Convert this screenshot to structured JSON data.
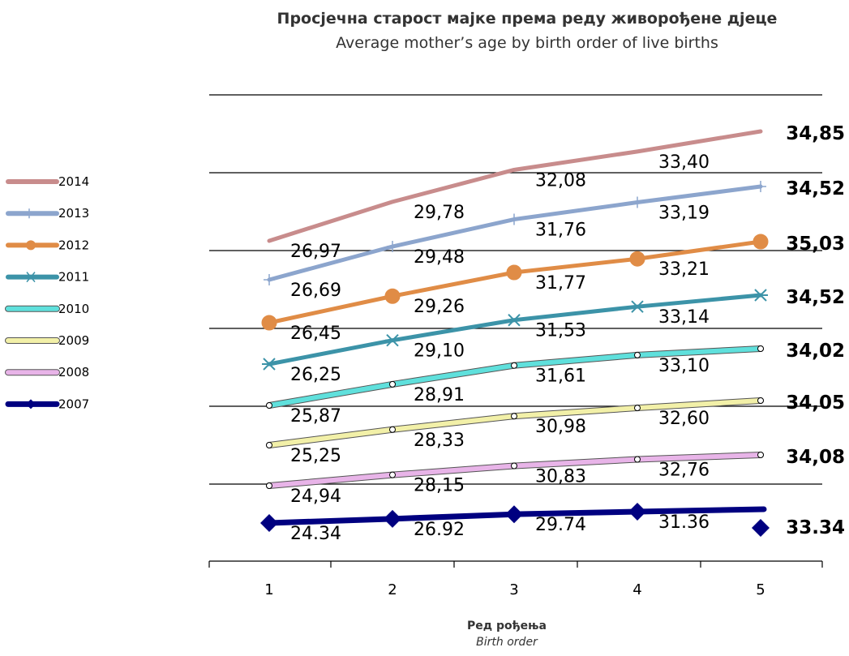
{
  "chart_data": {
    "type": "line",
    "title": "Просјечна старост мајке према реду живорођене дјеце",
    "subtitle": "Average mother’s age by birth order of live births",
    "xlabel": "Ред рођења",
    "xlabel_en": "Birth order",
    "categories": [
      "1",
      "2",
      "3",
      "4",
      "5"
    ],
    "legend_position": "left",
    "series": [
      {
        "name": "2014",
        "values": [
          26.97,
          29.78,
          32.08,
          33.4,
          34.85
        ],
        "labels": [
          "26,97",
          "29,78",
          "32,08",
          "33,40",
          "34,85"
        ],
        "color": "#c88c8c",
        "marker": "none"
      },
      {
        "name": "2013",
        "values": [
          26.69,
          29.48,
          31.76,
          33.19,
          34.52
        ],
        "labels": [
          "26,69",
          "29,48",
          "31,76",
          "33,19",
          "34,52"
        ],
        "color": "#8ca5cd",
        "marker": "plus"
      },
      {
        "name": "2012",
        "values": [
          26.45,
          29.26,
          31.77,
          33.21,
          35.03
        ],
        "labels": [
          "26,45",
          "29,26",
          "31,77",
          "33,21",
          "35,03"
        ],
        "color": "#e08c46",
        "marker": "circle"
      },
      {
        "name": "2011",
        "values": [
          26.25,
          29.1,
          31.53,
          33.14,
          34.52
        ],
        "labels": [
          "26,25",
          "29,10",
          "31,53",
          "33,14",
          "34,52"
        ],
        "color": "#3c93a8",
        "marker": "asterisk"
      },
      {
        "name": "2010",
        "values": [
          25.87,
          28.91,
          31.61,
          33.1,
          34.02
        ],
        "labels": [
          "25,87",
          "28,91",
          "31,61",
          "33,10",
          "34,02"
        ],
        "color": "#5fe0dc",
        "marker": "small-circle"
      },
      {
        "name": "2009",
        "values": [
          25.25,
          28.33,
          30.98,
          32.6,
          34.05
        ],
        "labels": [
          "25,25",
          "28,33",
          "30,98",
          "32,60",
          "34,05"
        ],
        "color": "#f2f0a8",
        "marker": "small-circle"
      },
      {
        "name": "2008",
        "values": [
          24.94,
          28.15,
          30.83,
          32.76,
          34.08
        ],
        "labels": [
          "24,94",
          "28,15",
          "30,83",
          "32,76",
          "34,08"
        ],
        "color": "#e8b4e8",
        "marker": "small-circle"
      },
      {
        "name": "2007",
        "values": [
          24.34,
          26.92,
          29.74,
          31.36,
          33.34
        ],
        "labels": [
          "24.34",
          "26.92",
          "29.74",
          "31.36",
          "33.34"
        ],
        "color": "#000080",
        "marker": "diamond"
      }
    ]
  }
}
